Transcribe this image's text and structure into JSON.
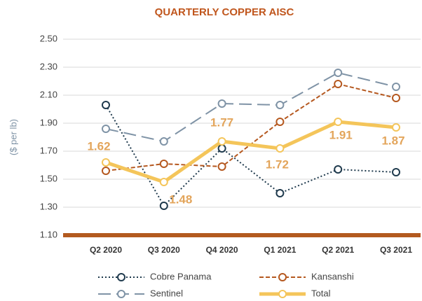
{
  "chart_data": {
    "type": "line",
    "title": "QUARTERLY COPPER AISC",
    "y_label": "($ per lb)",
    "categories": [
      "Q2 2020",
      "Q3 2020",
      "Q4 2020",
      "Q1 2021",
      "Q2 2021",
      "Q3 2021"
    ],
    "series": [
      {
        "name": "Cobre Panama",
        "color": "#1f3a4d",
        "style": "dotted",
        "values": [
          2.03,
          1.31,
          1.72,
          1.4,
          1.57,
          1.55
        ]
      },
      {
        "name": "Kansanshi",
        "color": "#b5581f",
        "style": "dashed",
        "values": [
          1.56,
          1.61,
          1.59,
          1.91,
          2.18,
          2.08
        ]
      },
      {
        "name": "Sentinel",
        "color": "#7f93a6",
        "style": "longdash",
        "values": [
          1.86,
          1.77,
          2.04,
          2.03,
          2.26,
          2.16
        ]
      },
      {
        "name": "Total",
        "color": "#f4c55a",
        "style": "thick",
        "values": [
          1.62,
          1.48,
          1.77,
          1.72,
          1.91,
          1.87
        ],
        "data_labels": true
      }
    ],
    "ylim": [
      1.1,
      2.5
    ],
    "yticks": [
      {
        "value": 1.1,
        "label": "1.10"
      },
      {
        "value": 1.3,
        "label": "1.30"
      },
      {
        "value": 1.5,
        "label": "1.50"
      },
      {
        "value": 1.7,
        "label": "1.70"
      },
      {
        "value": 1.9,
        "label": "1.90"
      },
      {
        "value": 2.1,
        "label": "2.10"
      },
      {
        "value": 2.3,
        "label": "2.30"
      },
      {
        "value": 2.5,
        "label": "2.50"
      }
    ],
    "grid": true,
    "legend": "bottom"
  }
}
